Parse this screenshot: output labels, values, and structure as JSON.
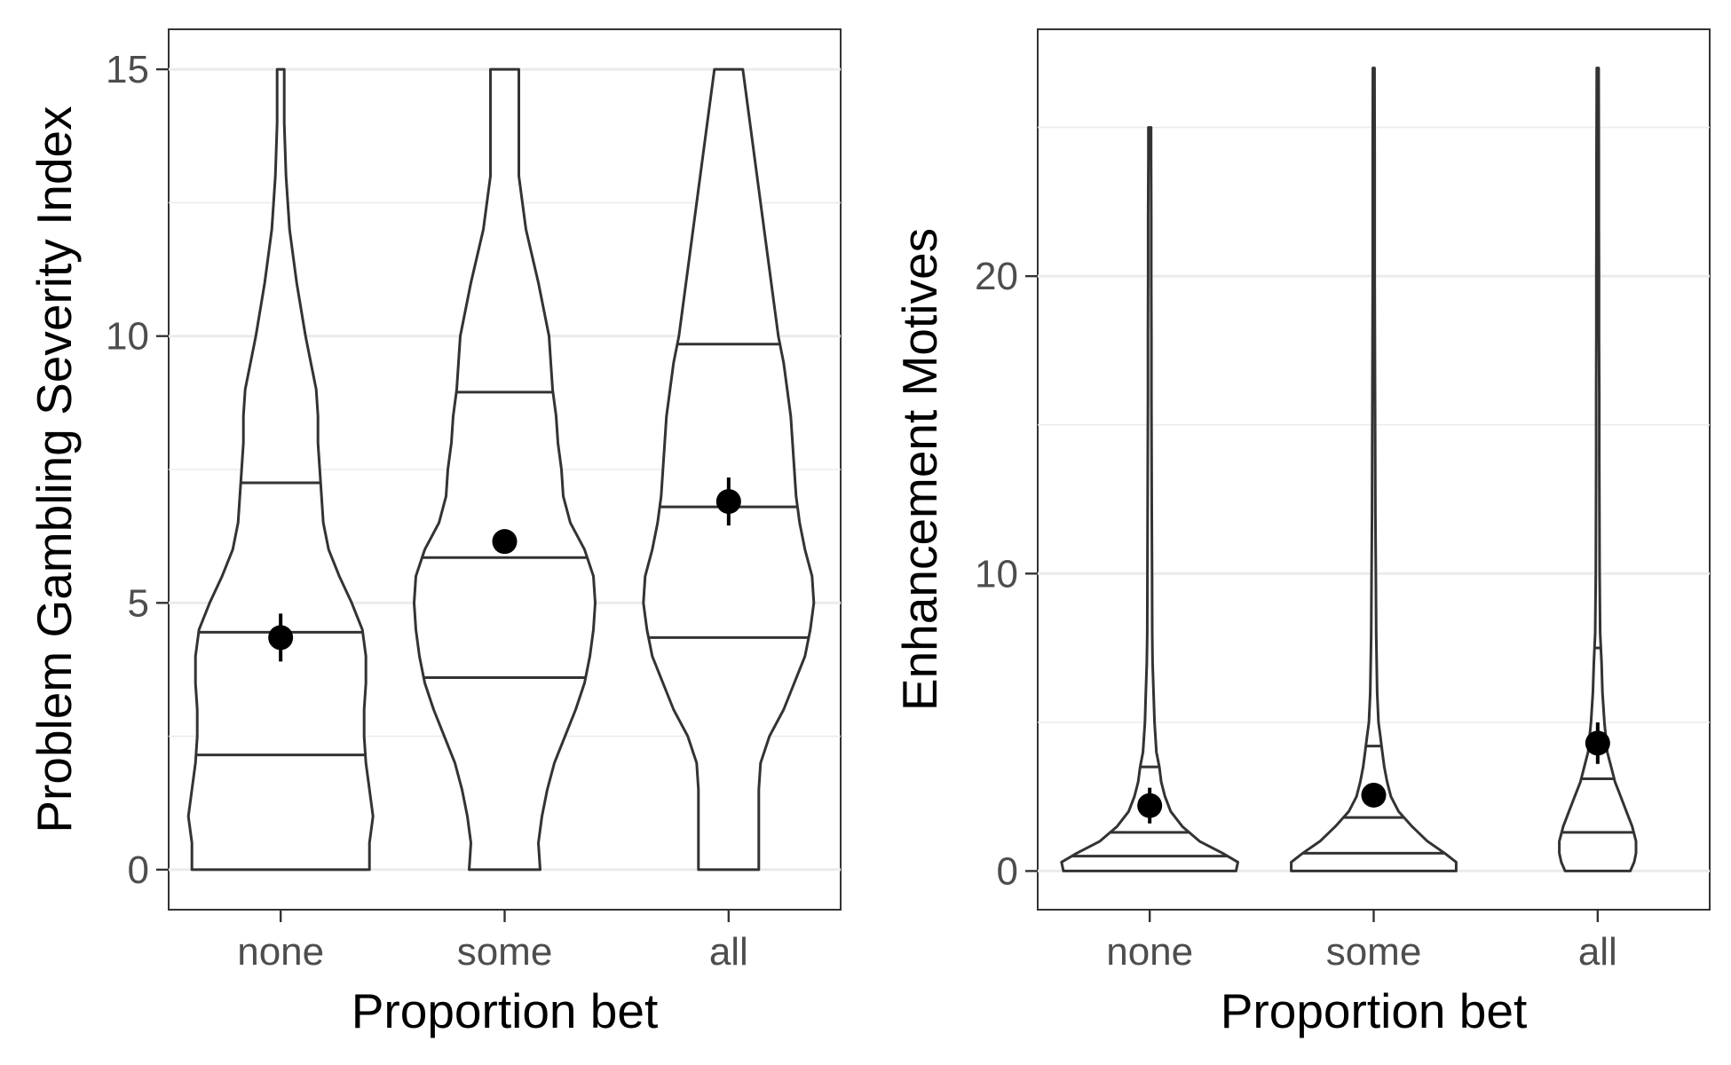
{
  "chart_data": [
    {
      "type": "violin",
      "xlabel": "Proportion bet",
      "ylabel": "Problem Gambling Severity Index",
      "categories": [
        "none",
        "some",
        "all"
      ],
      "y_ticks": [
        0,
        5,
        10,
        15
      ],
      "ylim": [
        -0.75,
        15.75
      ],
      "grid": true,
      "violins": [
        {
          "category": "none",
          "quantiles": [
            2.15,
            4.45,
            7.25
          ],
          "mean": 4.35,
          "ci": [
            3.9,
            4.8
          ],
          "profile": [
            [
              0,
              0.5
            ],
            [
              0.5,
              0.5
            ],
            [
              1,
              0.52
            ],
            [
              1.5,
              0.5
            ],
            [
              2,
              0.48
            ],
            [
              2.5,
              0.47
            ],
            [
              3,
              0.47
            ],
            [
              3.5,
              0.48
            ],
            [
              4,
              0.48
            ],
            [
              4.5,
              0.46
            ],
            [
              5,
              0.4
            ],
            [
              5.5,
              0.33
            ],
            [
              6,
              0.27
            ],
            [
              6.5,
              0.24
            ],
            [
              7,
              0.23
            ],
            [
              7.5,
              0.22
            ],
            [
              8,
              0.21
            ],
            [
              8.5,
              0.21
            ],
            [
              9,
              0.2
            ],
            [
              9.5,
              0.17
            ],
            [
              10,
              0.14
            ],
            [
              11,
              0.09
            ],
            [
              12,
              0.05
            ],
            [
              13,
              0.03
            ],
            [
              14,
              0.02
            ],
            [
              15,
              0.02
            ]
          ]
        },
        {
          "category": "some",
          "quantiles": [
            3.6,
            5.85,
            8.95
          ],
          "mean": 6.15,
          "ci": [
            6.0,
            6.3
          ],
          "profile": [
            [
              0,
              0.2
            ],
            [
              0.5,
              0.19
            ],
            [
              1,
              0.21
            ],
            [
              1.5,
              0.24
            ],
            [
              2,
              0.28
            ],
            [
              2.5,
              0.34
            ],
            [
              3,
              0.4
            ],
            [
              3.5,
              0.45
            ],
            [
              4,
              0.48
            ],
            [
              4.5,
              0.5
            ],
            [
              5,
              0.51
            ],
            [
              5.5,
              0.5
            ],
            [
              6,
              0.45
            ],
            [
              6.5,
              0.37
            ],
            [
              7,
              0.33
            ],
            [
              7.5,
              0.32
            ],
            [
              8,
              0.3
            ],
            [
              8.5,
              0.29
            ],
            [
              9,
              0.27
            ],
            [
              9.5,
              0.26
            ],
            [
              10,
              0.25
            ],
            [
              11,
              0.19
            ],
            [
              12,
              0.12
            ],
            [
              13,
              0.08
            ],
            [
              14,
              0.08
            ],
            [
              15,
              0.08
            ]
          ]
        },
        {
          "category": "all",
          "quantiles": [
            4.35,
            6.8,
            9.85
          ],
          "mean": 6.9,
          "ci": [
            6.45,
            7.35
          ],
          "profile": [
            [
              0,
              0.17
            ],
            [
              0.5,
              0.17
            ],
            [
              1,
              0.17
            ],
            [
              1.5,
              0.17
            ],
            [
              2,
              0.18
            ],
            [
              2.5,
              0.23
            ],
            [
              3,
              0.31
            ],
            [
              3.5,
              0.37
            ],
            [
              4,
              0.43
            ],
            [
              4.5,
              0.46
            ],
            [
              5,
              0.48
            ],
            [
              5.5,
              0.47
            ],
            [
              6,
              0.43
            ],
            [
              6.5,
              0.4
            ],
            [
              7,
              0.38
            ],
            [
              7.5,
              0.37
            ],
            [
              8,
              0.36
            ],
            [
              8.5,
              0.35
            ],
            [
              9,
              0.33
            ],
            [
              9.5,
              0.31
            ],
            [
              10,
              0.28
            ],
            [
              11,
              0.24
            ],
            [
              12,
              0.2
            ],
            [
              13,
              0.16
            ],
            [
              14,
              0.12
            ],
            [
              15,
              0.08
            ]
          ]
        }
      ]
    },
    {
      "type": "violin",
      "xlabel": "Proportion bet",
      "ylabel": "Enhancement Motives",
      "categories": [
        "none",
        "some",
        "all"
      ],
      "y_ticks": [
        0,
        10,
        20
      ],
      "ylim": [
        -1.3,
        28.3
      ],
      "grid": true,
      "violins": [
        {
          "category": "none",
          "quantiles": [
            0.5,
            1.3,
            3.5
          ],
          "mean": 2.2,
          "ci": [
            1.6,
            2.8
          ],
          "profile": [
            [
              0,
              0.45
            ],
            [
              0.3,
              0.46
            ],
            [
              0.6,
              0.38
            ],
            [
              1,
              0.26
            ],
            [
              1.5,
              0.17
            ],
            [
              2,
              0.11
            ],
            [
              2.5,
              0.08
            ],
            [
              3,
              0.06
            ],
            [
              3.5,
              0.05
            ],
            [
              4,
              0.035
            ],
            [
              5,
              0.025
            ],
            [
              6,
              0.02
            ],
            [
              7,
              0.015
            ],
            [
              8,
              0.013
            ],
            [
              10,
              0.012
            ],
            [
              12,
              0.011
            ],
            [
              14,
              0.01
            ],
            [
              16,
              0.009
            ],
            [
              18,
              0.009
            ],
            [
              20,
              0.008
            ],
            [
              22,
              0.008
            ],
            [
              24,
              0.007
            ],
            [
              25,
              0.007
            ]
          ]
        },
        {
          "category": "some",
          "quantiles": [
            0.6,
            1.8,
            4.2
          ],
          "mean": 2.55,
          "ci": [
            2.3,
            2.8
          ],
          "profile": [
            [
              0,
              0.43
            ],
            [
              0.3,
              0.43
            ],
            [
              0.6,
              0.37
            ],
            [
              1,
              0.28
            ],
            [
              1.5,
              0.2
            ],
            [
              2,
              0.13
            ],
            [
              2.5,
              0.09
            ],
            [
              3,
              0.07
            ],
            [
              3.5,
              0.055
            ],
            [
              4,
              0.045
            ],
            [
              4.5,
              0.035
            ],
            [
              5,
              0.025
            ],
            [
              6,
              0.018
            ],
            [
              8,
              0.013
            ],
            [
              10,
              0.011
            ],
            [
              12,
              0.009
            ],
            [
              14,
              0.008
            ],
            [
              16,
              0.007
            ],
            [
              18,
              0.006
            ],
            [
              20,
              0.005
            ],
            [
              22,
              0.005
            ],
            [
              24,
              0.005
            ],
            [
              27,
              0.004
            ]
          ]
        },
        {
          "category": "all",
          "quantiles": [
            1.3,
            3.1,
            7.5
          ],
          "mean": 4.3,
          "ci": [
            3.6,
            5.0
          ],
          "profile": [
            [
              0,
              0.17
            ],
            [
              0.3,
              0.19
            ],
            [
              0.6,
              0.2
            ],
            [
              1,
              0.2
            ],
            [
              1.5,
              0.18
            ],
            [
              2,
              0.15
            ],
            [
              2.5,
              0.12
            ],
            [
              3,
              0.09
            ],
            [
              3.5,
              0.07
            ],
            [
              4,
              0.05
            ],
            [
              5,
              0.035
            ],
            [
              6,
              0.025
            ],
            [
              7,
              0.02
            ],
            [
              8,
              0.013
            ],
            [
              10,
              0.01
            ],
            [
              12,
              0.009
            ],
            [
              14,
              0.008
            ],
            [
              16,
              0.008
            ],
            [
              18,
              0.007
            ],
            [
              20,
              0.007
            ],
            [
              22,
              0.006
            ],
            [
              24,
              0.006
            ],
            [
              27,
              0.005
            ]
          ]
        }
      ]
    }
  ]
}
